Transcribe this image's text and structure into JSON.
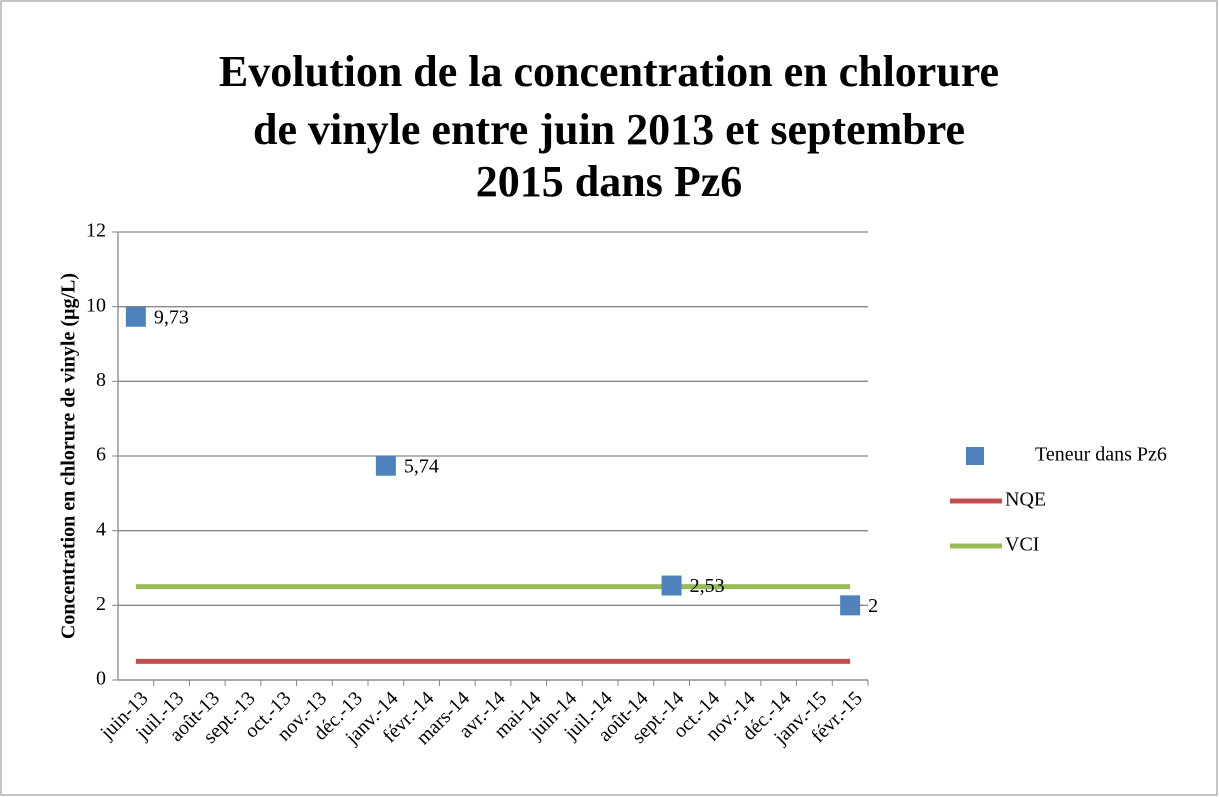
{
  "chart_data": {
    "type": "scatter-line",
    "title": [
      "Evolution de la concentration en chlorure",
      "de vinyle entre juin 2013 et septembre",
      "2015 dans Pz6"
    ],
    "y_label": "Concentration en chlorure de vinyle (µg/L)",
    "categories": [
      "juin-13",
      "juil.-13",
      "août-13",
      "sept.-13",
      "oct.-13",
      "nov.-13",
      "déc.-13",
      "janv.-14",
      "févr.-14",
      "mars-14",
      "avr.-14",
      "mai-14",
      "juin-14",
      "juil.-14",
      "août-14",
      "sept.-14",
      "oct.-14",
      "nov.-14",
      "déc.-14",
      "janv.-15",
      "févr.-15"
    ],
    "series": [
      {
        "name": "Teneur dans Pz6",
        "color": "#4f81bd",
        "kind": "marker",
        "values": [
          9.73,
          null,
          null,
          null,
          null,
          null,
          null,
          5.74,
          null,
          null,
          null,
          null,
          null,
          null,
          null,
          2.53,
          null,
          null,
          null,
          null,
          2
        ],
        "value_labels": [
          "9,73",
          null,
          null,
          null,
          null,
          null,
          null,
          "5,74",
          null,
          null,
          null,
          null,
          null,
          null,
          null,
          "2,53",
          null,
          null,
          null,
          null,
          "2"
        ]
      },
      {
        "name": "NQE",
        "color": "#c0504d",
        "kind": "line",
        "values": [
          0.5,
          0.5,
          0.5,
          0.5,
          0.5,
          0.5,
          0.5,
          0.5,
          0.5,
          0.5,
          0.5,
          0.5,
          0.5,
          0.5,
          0.5,
          0.5,
          0.5,
          0.5,
          0.5,
          0.5,
          0.5
        ]
      },
      {
        "name": "VCI",
        "color": "#9bbb59",
        "kind": "line",
        "values": [
          2.5,
          2.5,
          2.5,
          2.5,
          2.5,
          2.5,
          2.5,
          2.5,
          2.5,
          2.5,
          2.5,
          2.5,
          2.5,
          2.5,
          2.5,
          2.5,
          2.5,
          2.5,
          2.5,
          2.5,
          2.5
        ]
      }
    ],
    "ylim": [
      0,
      12
    ],
    "yticks": [
      0,
      2,
      4,
      6,
      8,
      10,
      12
    ],
    "grid": true,
    "legend": "right"
  }
}
